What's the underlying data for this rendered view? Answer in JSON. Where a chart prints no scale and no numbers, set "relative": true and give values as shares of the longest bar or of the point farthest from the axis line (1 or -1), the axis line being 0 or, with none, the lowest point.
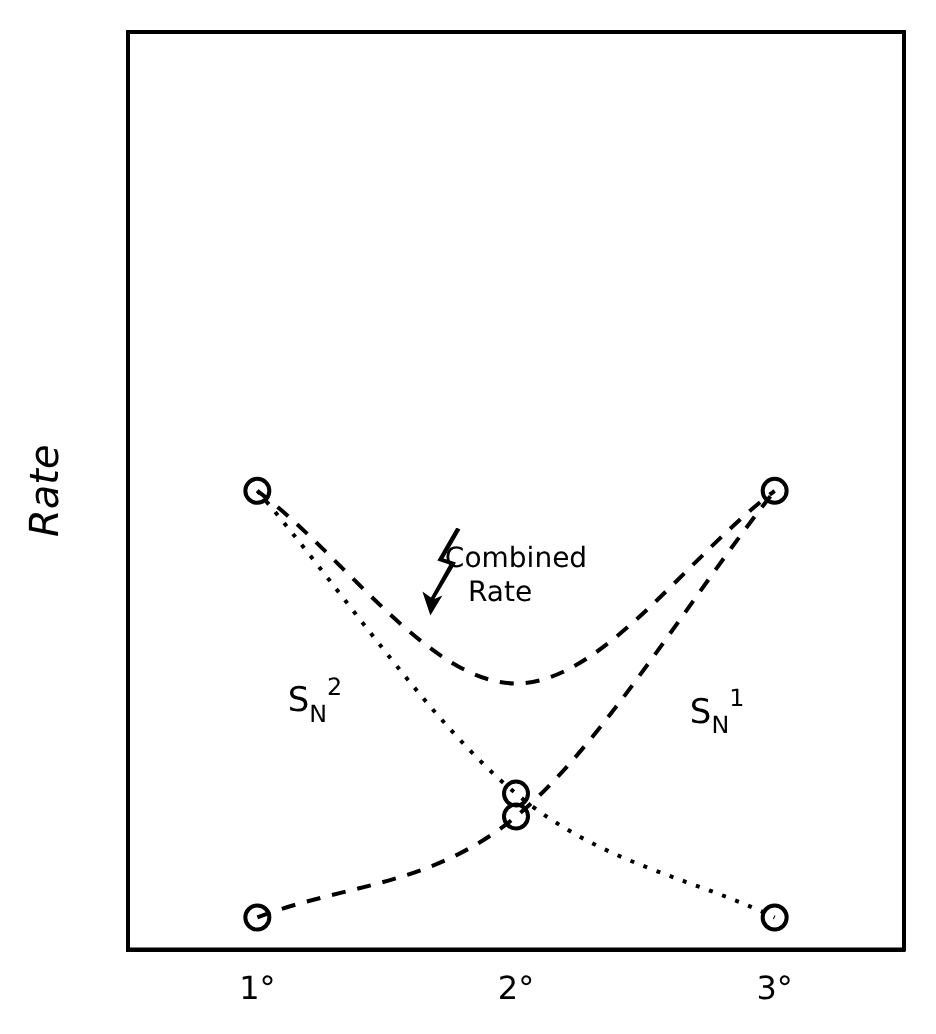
{
  "chart_data": {
    "type": "line",
    "relative": true,
    "ylabel": "Rate",
    "categories": [
      "1°",
      "2°",
      "3°"
    ],
    "grid": false,
    "legend": false,
    "series": [
      {
        "name": "S$_{N}$$^{2}$",
        "color": "#000000",
        "values": [
          1,
          0.34,
          0.07
        ],
        "line_style": "dotted",
        "marker": "circle"
      },
      {
        "name": "S$_{N}$$^{1}$",
        "color": "#000000",
        "values": [
          0.07,
          0.29,
          1
        ],
        "line_style": "dashed",
        "marker": "circle"
      },
      {
        "name": "Combined Rate",
        "color": "#000000",
        "values": [
          1,
          0.58,
          1
        ],
        "line_style": "dashed",
        "marker": "none"
      }
    ]
  }
}
